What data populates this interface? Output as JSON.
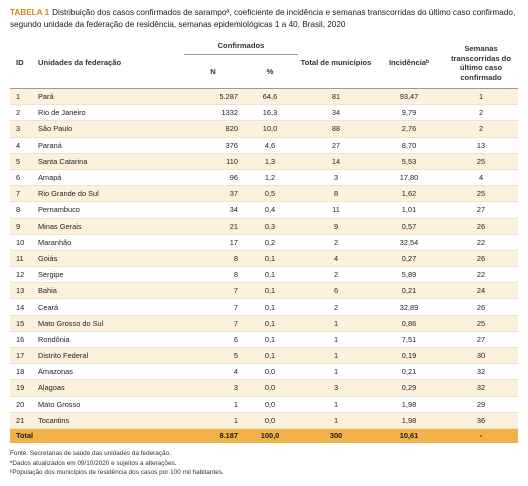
{
  "caption": {
    "tag": "TABELA 1",
    "line1": "Distribuição dos casos confirmados de sarampoª, coeficiente de incidência e semanas transcorridas do último caso confirmado,",
    "line2": "segundo unidade da federação de residência, semanas epidemiológicas 1 a 40, Brasil, 2020"
  },
  "headers": {
    "id": "ID",
    "uf": "Unidades da federação",
    "confirmados": "Confirmados",
    "n": "N",
    "pct": "%",
    "municipios": "Total de municípios",
    "incidencia": "Incidênciaᵇ",
    "semanas": "Semanas transcorridas do último caso confirmado"
  },
  "rows": [
    {
      "id": "1",
      "uf": "Pará",
      "n": "5.287",
      "pct": "64,6",
      "mun": "81",
      "inc": "93,47",
      "sem": "1"
    },
    {
      "id": "2",
      "uf": "Rio de Janeiro",
      "n": "1332",
      "pct": "16,3",
      "mun": "34",
      "inc": "9,79",
      "sem": "2"
    },
    {
      "id": "3",
      "uf": "São Paulo",
      "n": "820",
      "pct": "10,0",
      "mun": "88",
      "inc": "2,76",
      "sem": "2"
    },
    {
      "id": "4",
      "uf": "Paraná",
      "n": "376",
      "pct": "4,6",
      "mun": "27",
      "inc": "8,70",
      "sem": "13"
    },
    {
      "id": "5",
      "uf": "Santa Catarina",
      "n": "110",
      "pct": "1,3",
      "mun": "14",
      "inc": "5,53",
      "sem": "25"
    },
    {
      "id": "6",
      "uf": "Amapá",
      "n": "96",
      "pct": "1,2",
      "mun": "3",
      "inc": "17,80",
      "sem": "4"
    },
    {
      "id": "7",
      "uf": "Rio Grande do Sul",
      "n": "37",
      "pct": "0,5",
      "mun": "8",
      "inc": "1,62",
      "sem": "25"
    },
    {
      "id": "8",
      "uf": "Pernambuco",
      "n": "34",
      "pct": "0,4",
      "mun": "11",
      "inc": "1,01",
      "sem": "27"
    },
    {
      "id": "9",
      "uf": "Minas Gerais",
      "n": "21",
      "pct": "0,3",
      "mun": "9",
      "inc": "0,57",
      "sem": "26"
    },
    {
      "id": "10",
      "uf": "Maranhão",
      "n": "17",
      "pct": "0,2",
      "mun": "2",
      "inc": "32,54",
      "sem": "22"
    },
    {
      "id": "11",
      "uf": "Goiás",
      "n": "8",
      "pct": "0,1",
      "mun": "4",
      "inc": "0,27",
      "sem": "26"
    },
    {
      "id": "12",
      "uf": "Sergipe",
      "n": "8",
      "pct": "0,1",
      "mun": "2",
      "inc": "5,89",
      "sem": "22"
    },
    {
      "id": "13",
      "uf": "Bahia",
      "n": "7",
      "pct": "0,1",
      "mun": "6",
      "inc": "0,21",
      "sem": "24"
    },
    {
      "id": "14",
      "uf": "Ceará",
      "n": "7",
      "pct": "0,1",
      "mun": "2",
      "inc": "32,89",
      "sem": "26"
    },
    {
      "id": "15",
      "uf": "Mato Grosso do Sul",
      "n": "7",
      "pct": "0,1",
      "mun": "1",
      "inc": "0,86",
      "sem": "25"
    },
    {
      "id": "16",
      "uf": "Rondônia",
      "n": "6",
      "pct": "0,1",
      "mun": "1",
      "inc": "7,51",
      "sem": "27"
    },
    {
      "id": "17",
      "uf": "Distrito Federal",
      "n": "5",
      "pct": "0,1",
      "mun": "1",
      "inc": "0,19",
      "sem": "30"
    },
    {
      "id": "18",
      "uf": "Amazonas",
      "n": "4",
      "pct": "0,0",
      "mun": "1",
      "inc": "0,21",
      "sem": "32"
    },
    {
      "id": "19",
      "uf": "Alagoas",
      "n": "3",
      "pct": "0,0",
      "mun": "3",
      "inc": "0,29",
      "sem": "32"
    },
    {
      "id": "20",
      "uf": "Mato Grosso",
      "n": "1",
      "pct": "0,0",
      "mun": "1",
      "inc": "1,98",
      "sem": "29"
    },
    {
      "id": "21",
      "uf": "Tocantins",
      "n": "1",
      "pct": "0,0",
      "mun": "1",
      "inc": "1,98",
      "sem": "36"
    }
  ],
  "total": {
    "label": "Total",
    "n": "8.187",
    "pct": "100,0",
    "mun": "300",
    "inc": "10,61",
    "sem": "-"
  },
  "notes": [
    "Fonte: Secretarias de saúde das unidades da federação.",
    "ªDados atualizados em 09/10/2020 e sujeitos a alterações.",
    "ᵇPopulação dos municípios de residência dos casos por 100 mil habitantes."
  ],
  "colors": {
    "row_tint": "#fdf0dc",
    "total_bg": "#f2b24a",
    "tag": "#d08a1a"
  }
}
